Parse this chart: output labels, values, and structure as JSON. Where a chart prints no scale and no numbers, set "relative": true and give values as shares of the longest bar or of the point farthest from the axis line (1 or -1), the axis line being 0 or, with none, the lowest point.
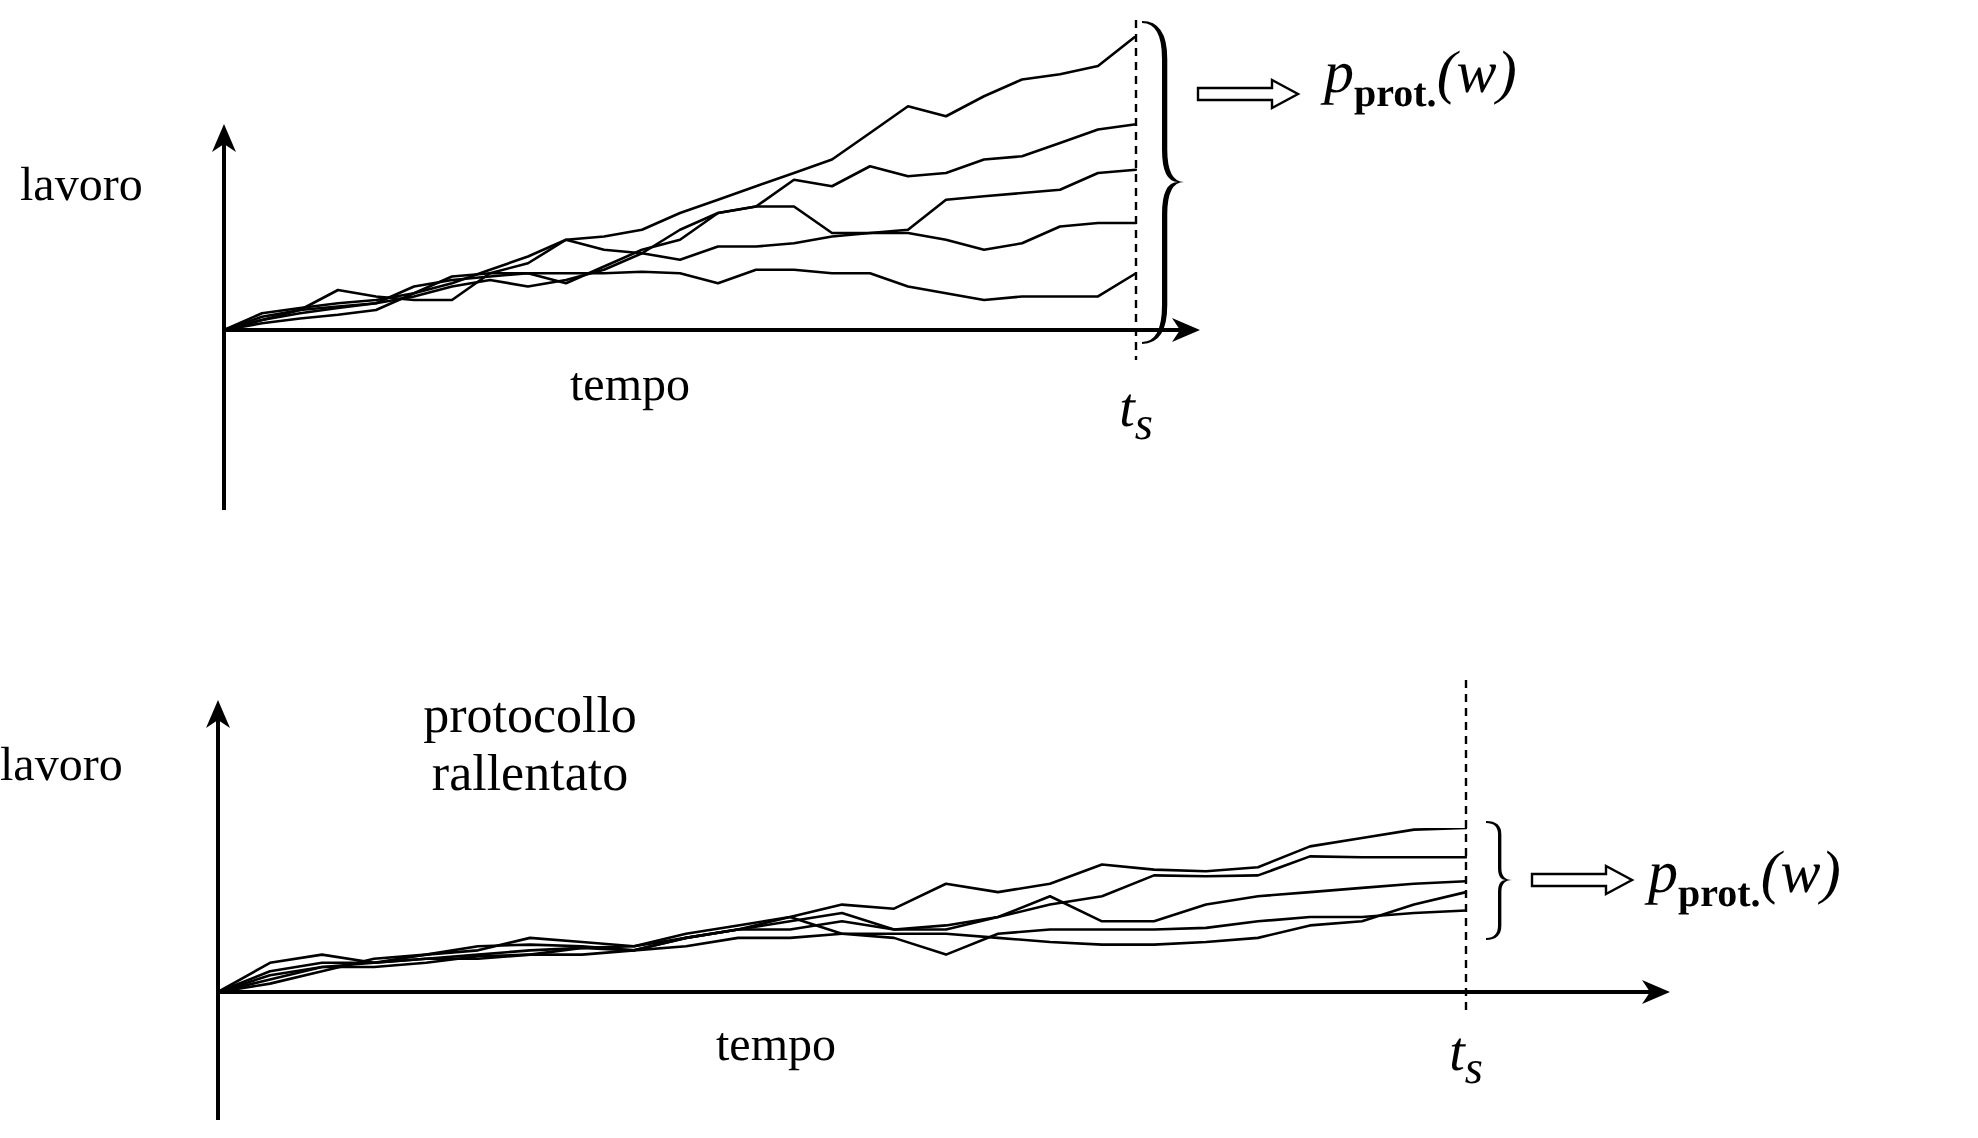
{
  "chart_data": [
    {
      "type": "line",
      "relative": true,
      "ylabel": "lavoro",
      "xlabel": "tempo",
      "tick_labels": false,
      "marker": "none",
      "categories": [
        null,
        null,
        null,
        null,
        null,
        null,
        null,
        null,
        null,
        null,
        null,
        null,
        null,
        null,
        null,
        null,
        null,
        null,
        null,
        null,
        null,
        null,
        null,
        null,
        null
      ],
      "series": [
        {
          "color": "#000000",
          "values": [
            0,
            0.057,
            0.075,
            0.091,
            0.102,
            0.125,
            0.159,
            0.205,
            0.25,
            0.307,
            0.318,
            0.341,
            0.398,
            0.443,
            0.489,
            0.534,
            0.58,
            0.67,
            0.761,
            0.727,
            0.795,
            0.852,
            0.87,
            0.898,
            1
          ]
        },
        {
          "color": "#000000",
          "values": [
            0,
            0.034,
            0.068,
            0.08,
            0.091,
            0.114,
            0.148,
            0.17,
            0.148,
            0.17,
            0.205,
            0.261,
            0.341,
            0.398,
            0.42,
            0.511,
            0.489,
            0.557,
            0.523,
            0.534,
            0.58,
            0.591,
            0.636,
            0.682,
            0.7
          ]
        },
        {
          "color": "#000000",
          "values": [
            0,
            0.045,
            0.068,
            0.136,
            0.114,
            0.102,
            0.102,
            0.193,
            0.227,
            0.307,
            0.273,
            0.261,
            0.239,
            0.284,
            0.284,
            0.295,
            0.318,
            0.33,
            0.341,
            0.443,
            0.455,
            0.466,
            0.477,
            0.534,
            0.545
          ]
        },
        {
          "color": "#000000",
          "values": [
            0,
            0.034,
            0.057,
            0.075,
            0.091,
            0.148,
            0.17,
            0.182,
            0.193,
            0.159,
            0.216,
            0.273,
            0.307,
            0.398,
            0.42,
            0.42,
            0.33,
            0.33,
            0.33,
            0.307,
            0.273,
            0.295,
            0.352,
            0.364,
            0.364
          ]
        },
        {
          "color": "#000000",
          "values": [
            0,
            0.023,
            0.039,
            0.052,
            0.068,
            0.125,
            0.182,
            0.193,
            0.193,
            0.193,
            0.193,
            0.198,
            0.193,
            0.159,
            0.205,
            0.205,
            0.193,
            0.193,
            0.148,
            0.125,
            0.102,
            0.114,
            0.114,
            0.114,
            0.193
          ]
        }
      ],
      "ref_lines": [
        {
          "axis": "x",
          "label": "t$_{s}$",
          "line_style": "dashed",
          "color": "#000000"
        }
      ],
      "annotations": [
        "p$_{prot.}$(w)"
      ]
    },
    {
      "type": "line",
      "relative": true,
      "ylabel": "lavoro",
      "xlabel": "tempo",
      "tick_labels": false,
      "marker": "none",
      "categories": [
        null,
        null,
        null,
        null,
        null,
        null,
        null,
        null,
        null,
        null,
        null,
        null,
        null,
        null,
        null,
        null,
        null,
        null,
        null,
        null,
        null,
        null,
        null,
        null,
        null
      ],
      "series": [
        {
          "color": "#000000",
          "values": [
            0,
            0.127,
            0.178,
            0.178,
            0.203,
            0.228,
            0.254,
            0.269,
            0.279,
            0.355,
            0.406,
            0.457,
            0.533,
            0.508,
            0.66,
            0.609,
            0.66,
            0.777,
            0.746,
            0.736,
            0.761,
            0.888,
            0.939,
            0.99,
            1
          ]
        },
        {
          "color": "#000000",
          "values": [
            0,
            0.178,
            0.228,
            0.178,
            0.203,
            0.203,
            0.228,
            0.269,
            0.254,
            0.33,
            0.381,
            0.431,
            0.482,
            0.381,
            0.406,
            0.457,
            0.533,
            0.584,
            0.711,
            0.706,
            0.711,
            0.827,
            0.822,
            0.822,
            0.822
          ]
        },
        {
          "color": "#000000",
          "values": [
            0,
            0.102,
            0.152,
            0.178,
            0.228,
            0.254,
            0.33,
            0.305,
            0.279,
            0.33,
            0.381,
            0.381,
            0.431,
            0.381,
            0.381,
            0.457,
            0.584,
            0.431,
            0.431,
            0.533,
            0.584,
            0.609,
            0.635,
            0.66,
            0.675
          ]
        },
        {
          "color": "#000000",
          "values": [
            0,
            0.051,
            0.127,
            0.203,
            0.228,
            0.279,
            0.289,
            0.279,
            0.254,
            0.33,
            0.381,
            0.457,
            0.355,
            0.33,
            0.228,
            0.355,
            0.381,
            0.381,
            0.381,
            0.391,
            0.431,
            0.457,
            0.457,
            0.482,
            0.497
          ]
        },
        {
          "color": "#000000",
          "values": [
            0,
            0.076,
            0.152,
            0.152,
            0.178,
            0.218,
            0.228,
            0.228,
            0.254,
            0.279,
            0.33,
            0.33,
            0.355,
            0.355,
            0.355,
            0.33,
            0.305,
            0.289,
            0.289,
            0.305,
            0.33,
            0.406,
            0.431,
            0.533,
            0.609
          ]
        }
      ],
      "ref_lines": [
        {
          "axis": "x",
          "label": "t$_{s}$",
          "line_style": "dashed",
          "color": "#000000"
        }
      ],
      "annotations": [
        "protocollo rallentato",
        "p$_{prot.}$(w)"
      ]
    }
  ]
}
